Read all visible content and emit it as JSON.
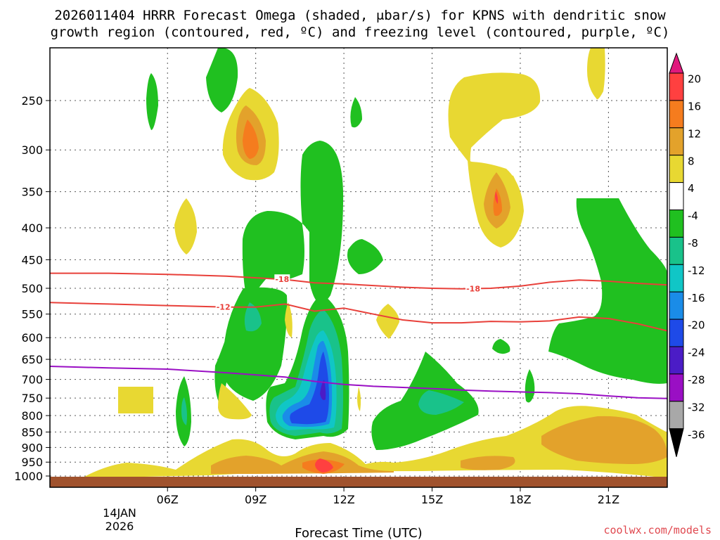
{
  "chart_data": {
    "type": "heatmap",
    "title_line1": "2026011404 HRRR Forecast Omega (shaded, μbar/s) for KPNS with dendritic snow",
    "title_line2": "growth region (contoured, red, ºC) and freezing level (contoured, purple, ºC)",
    "xlabel": "Forecast Time (UTC)",
    "watermark": "coolwx.com/models",
    "date_label": [
      "14JAN",
      "2026"
    ],
    "x_range_hours": [
      2.0,
      23.0
    ],
    "x_ticks": [
      {
        "label": "06Z",
        "hour": 6
      },
      {
        "label": "09Z",
        "hour": 9
      },
      {
        "label": "12Z",
        "hour": 12
      },
      {
        "label": "15Z",
        "hour": 15
      },
      {
        "label": "18Z",
        "hour": 18
      },
      {
        "label": "21Z",
        "hour": 21
      }
    ],
    "y_range_mb": [
      1030,
      200
    ],
    "y_ticks": [
      "250",
      "300",
      "350",
      "400",
      "450",
      "500",
      "550",
      "600",
      "650",
      "700",
      "750",
      "800",
      "850",
      "900",
      "950",
      "1000"
    ],
    "colorbar": {
      "labels": [
        "20",
        "16",
        "12",
        "8",
        "4",
        "-4",
        "-8",
        "-12",
        "-16",
        "-20",
        "-24",
        "-28",
        "-32",
        "-36"
      ],
      "colors": [
        "#ff4040",
        "#f57c1e",
        "#e3a22b",
        "#e8d832",
        "#ffffff",
        "#20c020",
        "#19c28a",
        "#10c6c6",
        "#1a8ce8",
        "#1e4ae8",
        "#4b1cc6",
        "#9a0fc4",
        "#a8a8a8"
      ],
      "top_color": "#e0197d",
      "bottom_color": "#000000"
    },
    "contour_labels": [
      "-18",
      "-12",
      "-18"
    ],
    "dgz_upper_minus18": [
      [
        2.0,
        473
      ],
      [
        4,
        473
      ],
      [
        6,
        475
      ],
      [
        8,
        478
      ],
      [
        10,
        484
      ],
      [
        11,
        490
      ],
      [
        12,
        492
      ],
      [
        13,
        495
      ],
      [
        14,
        498
      ],
      [
        15,
        500
      ],
      [
        16,
        501
      ],
      [
        17,
        500
      ],
      [
        18,
        496
      ],
      [
        19,
        489
      ],
      [
        20,
        485
      ],
      [
        21,
        487
      ],
      [
        22,
        491
      ],
      [
        23,
        494
      ]
    ],
    "dgz_lower_minus12": [
      [
        2.0,
        527
      ],
      [
        4,
        530
      ],
      [
        6,
        533
      ],
      [
        8,
        536
      ],
      [
        9,
        536
      ],
      [
        10,
        530
      ],
      [
        11,
        544
      ],
      [
        12,
        538
      ],
      [
        13,
        550
      ],
      [
        14,
        562
      ],
      [
        15,
        568
      ],
      [
        16,
        568
      ],
      [
        17,
        565
      ],
      [
        18,
        566
      ],
      [
        19,
        564
      ],
      [
        20,
        556
      ],
      [
        21,
        559
      ],
      [
        22,
        570
      ],
      [
        23,
        585
      ]
    ],
    "freezing_level_0C": [
      [
        2.0,
        667
      ],
      [
        4,
        671
      ],
      [
        6,
        674
      ],
      [
        8,
        683
      ],
      [
        10,
        694
      ],
      [
        11,
        705
      ],
      [
        12,
        713
      ],
      [
        13,
        718
      ],
      [
        14,
        721
      ],
      [
        15,
        724
      ],
      [
        16,
        728
      ],
      [
        17,
        731
      ],
      [
        18,
        733
      ],
      [
        19,
        735
      ],
      [
        20,
        738
      ],
      [
        21,
        744
      ],
      [
        22,
        749
      ],
      [
        23,
        751
      ]
    ]
  }
}
